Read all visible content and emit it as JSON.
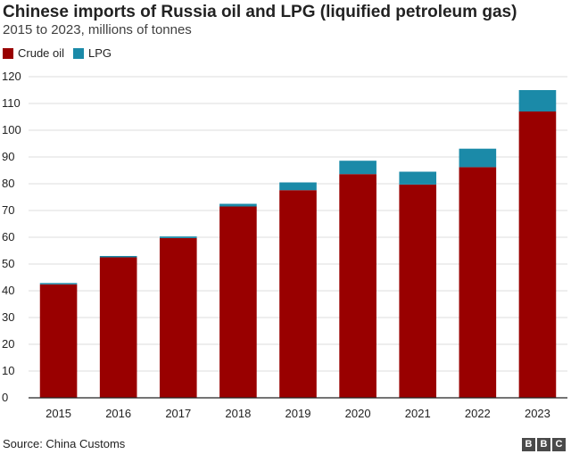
{
  "chart_data": {
    "type": "bar",
    "stacked": true,
    "title": "Chinese imports of Russia oil and LPG (liquified petroleum gas)",
    "subtitle": "2015 to 2023, millions of tonnes",
    "xlabel": "",
    "ylabel": "",
    "ylim": [
      0,
      120
    ],
    "yticks": [
      0,
      10,
      20,
      30,
      40,
      50,
      60,
      70,
      80,
      90,
      100,
      110,
      120
    ],
    "grid": true,
    "legend_position": "top-left",
    "categories": [
      "2015",
      "2016",
      "2017",
      "2018",
      "2019",
      "2020",
      "2021",
      "2022",
      "2023"
    ],
    "series": [
      {
        "name": "Crude oil",
        "color": "#990000",
        "values": [
          42.4,
          52.5,
          59.7,
          71.5,
          77.6,
          83.6,
          79.7,
          86.2,
          107.0
        ]
      },
      {
        "name": "LPG",
        "color": "#1b8aa8",
        "values": [
          0.5,
          0.5,
          0.6,
          1.0,
          2.9,
          5.0,
          4.8,
          6.9,
          8.0
        ]
      }
    ]
  },
  "footer": {
    "source": "Source: China Customs",
    "logo_letters": [
      "B",
      "B",
      "C"
    ]
  },
  "colors": {
    "grid": "#dcdcdc",
    "axis": "#222222",
    "text": "#222222"
  }
}
